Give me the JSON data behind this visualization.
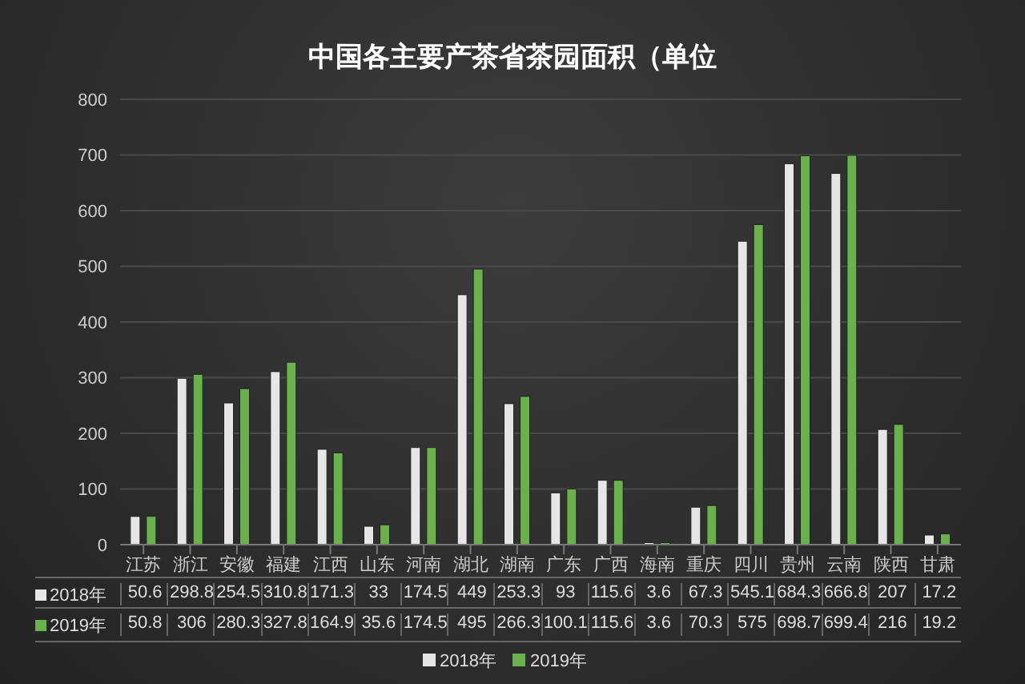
{
  "chart_data": {
    "type": "bar",
    "title": "中国各主要产茶省茶园面积（单位",
    "categories": [
      "江苏",
      "浙江",
      "安徽",
      "福建",
      "江西",
      "山东",
      "河南",
      "湖北",
      "湖南",
      "广东",
      "广西",
      "海南",
      "重庆",
      "四川",
      "贵州",
      "云南",
      "陕西",
      "甘肃"
    ],
    "series": [
      {
        "name": "2018年",
        "color": "#e6e6e6",
        "values": [
          50.6,
          298.8,
          254.5,
          310.8,
          171.3,
          33,
          174.5,
          449,
          253.3,
          93,
          115.6,
          3.6,
          67.3,
          545.1,
          684.3,
          666.8,
          207,
          17.2
        ]
      },
      {
        "name": "2019年",
        "color": "#6ab04c",
        "values": [
          50.8,
          306,
          280.3,
          327.8,
          164.9,
          35.6,
          174.5,
          495,
          266.3,
          100.1,
          115.6,
          3.6,
          70.3,
          575,
          698.7,
          699.4,
          216,
          19.2
        ]
      }
    ],
    "ylim": [
      0,
      800
    ],
    "yticks": [
      0,
      100,
      200,
      300,
      400,
      500,
      600,
      700,
      800
    ],
    "grid": "y",
    "legend": "bottom",
    "data_labels": true
  }
}
